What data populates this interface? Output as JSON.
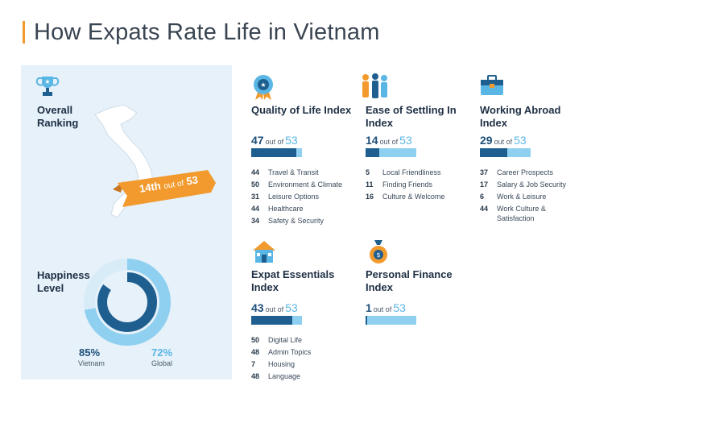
{
  "title": "How Expats Rate Life in Vietnam",
  "colors": {
    "orange": "#f29a2e",
    "dark_blue": "#1f5f90",
    "light_blue": "#8fd0f1",
    "panel_bg": "#e6f1f9"
  },
  "overall": {
    "label": "Overall Ranking",
    "rank": "14th",
    "out_of_text": "out of",
    "total": "53",
    "icon": "trophy-icon"
  },
  "happiness": {
    "label": "Happiness Level",
    "vietnam_value": "85%",
    "vietnam_label": "Vietnam",
    "global_value": "72%",
    "global_label": "Global"
  },
  "chart_data": {
    "type": "bar",
    "title": "How Expats Rate Life in Vietnam",
    "total_countries": 53,
    "overall_rank": 14,
    "happiness": {
      "series": [
        {
          "name": "Vietnam",
          "value": 85
        },
        {
          "name": "Global",
          "value": 72
        }
      ]
    },
    "indices": [
      {
        "name": "Quality of Life Index",
        "rank": 47,
        "icon": "badge-icon",
        "subs": [
          {
            "value": "44",
            "label": "Travel & Transit"
          },
          {
            "value": "50",
            "label": "Environment & Climate"
          },
          {
            "value": "31",
            "label": "Leisure Options"
          },
          {
            "value": "44",
            "label": "Healthcare"
          },
          {
            "value": "34",
            "label": "Safety & Security"
          }
        ]
      },
      {
        "name": "Ease of Settling In Index",
        "rank": 14,
        "icon": "people-icon",
        "subs": [
          {
            "value": "5",
            "label": "Local Friendliness"
          },
          {
            "value": "11",
            "label": "Finding Friends"
          },
          {
            "value": "16",
            "label": "Culture & Welcome"
          }
        ]
      },
      {
        "name": "Working Abroad Index",
        "rank": 29,
        "icon": "briefcase-icon",
        "subs": [
          {
            "value": "37",
            "label": "Career Prospects"
          },
          {
            "value": "17",
            "label": "Salary & Job Security"
          },
          {
            "value": "6",
            "label": "Work & Leisure"
          },
          {
            "value": "44",
            "label": "Work Culture & Satisfaction"
          }
        ]
      },
      {
        "name": "Expat Essentials Index",
        "rank": 43,
        "icon": "house-icon",
        "subs": [
          {
            "value": "50",
            "label": "Digital Life"
          },
          {
            "value": "48",
            "label": "Admin Topics"
          },
          {
            "value": "7",
            "label": "Housing"
          },
          {
            "value": "48",
            "label": "Language"
          }
        ]
      },
      {
        "name": "Personal Finance Index",
        "rank": 1,
        "icon": "money-bag-icon",
        "subs": []
      }
    ]
  },
  "cards": [
    {
      "title": "Quality of Life Index",
      "rank": "47",
      "out_of": "out of",
      "total": "53",
      "subs": [
        {
          "value": "44",
          "label": "Travel & Transit"
        },
        {
          "value": "50",
          "label": "Environment & Climate"
        },
        {
          "value": "31",
          "label": "Leisure Options"
        },
        {
          "value": "44",
          "label": "Healthcare"
        },
        {
          "value": "34",
          "label": "Safety & Security"
        }
      ]
    },
    {
      "title": "Ease of Settling In Index",
      "rank": "14",
      "out_of": "out of",
      "total": "53",
      "subs": [
        {
          "value": "5",
          "label": "Local Friendliness"
        },
        {
          "value": "11",
          "label": "Finding Friends"
        },
        {
          "value": "16",
          "label": "Culture & Welcome"
        }
      ]
    },
    {
      "title": "Working Abroad Index",
      "rank": "29",
      "out_of": "out of",
      "total": "53",
      "subs": [
        {
          "value": "37",
          "label": "Career Prospects"
        },
        {
          "value": "17",
          "label": "Salary & Job Security"
        },
        {
          "value": "6",
          "label": "Work & Leisure"
        },
        {
          "value": "44",
          "label": "Work Culture & Satisfaction"
        }
      ]
    },
    {
      "title": "Expat Essentials Index",
      "rank": "43",
      "out_of": "out of",
      "total": "53",
      "subs": [
        {
          "value": "50",
          "label": "Digital Life"
        },
        {
          "value": "48",
          "label": "Admin Topics"
        },
        {
          "value": "7",
          "label": "Housing"
        },
        {
          "value": "48",
          "label": "Language"
        }
      ]
    },
    {
      "title": "Personal Finance Index",
      "rank": "1",
      "out_of": "out of",
      "total": "53",
      "subs": []
    }
  ]
}
